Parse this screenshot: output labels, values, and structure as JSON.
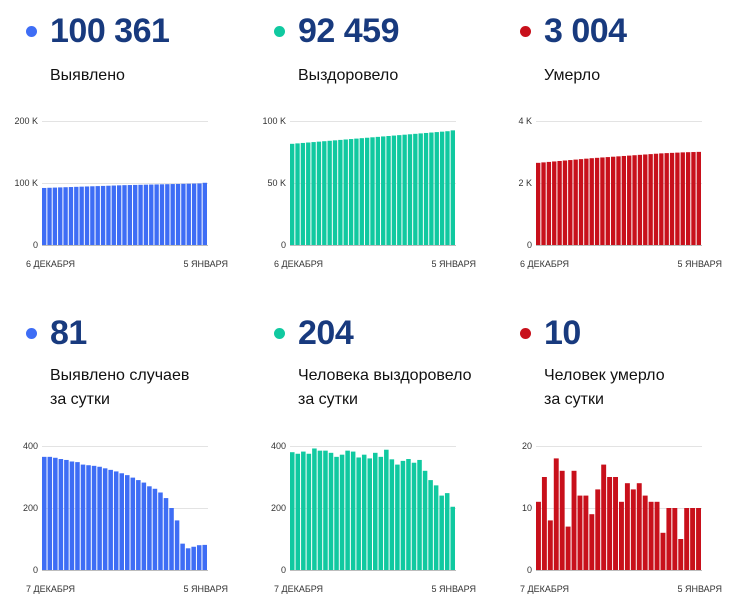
{
  "panels": [
    {
      "value": "100 361",
      "caption": [
        "Выявлено"
      ],
      "color": "#3e6df5"
    },
    {
      "value": "92 459",
      "caption": [
        "Выздоровело"
      ],
      "color": "#10c9a0"
    },
    {
      "value": "3 004",
      "caption": [
        "Умерло"
      ],
      "color": "#c8101b"
    },
    {
      "value": "81",
      "caption": [
        "Выявлено случаев",
        "за сутки"
      ],
      "color": "#3e6df5"
    },
    {
      "value": "204",
      "caption": [
        "Человека выздоровело",
        "за сутки"
      ],
      "color": "#10c9a0"
    },
    {
      "value": "10",
      "caption": [
        "Человек умерло",
        "за сутки"
      ],
      "color": "#c8101b"
    }
  ],
  "chart_data": [
    {
      "type": "bar",
      "color": "#3e6df5",
      "ylim": [
        0,
        200000
      ],
      "yticks": [
        0,
        100000,
        200000
      ],
      "ytick_labels": [
        "0",
        "100 K",
        "200 K"
      ],
      "x_labels": [
        "6 ДЕКАБРЯ",
        "5 ЯНВАРЯ"
      ],
      "values": [
        92000,
        92300,
        92600,
        92900,
        93200,
        93500,
        93800,
        94100,
        94400,
        94700,
        95000,
        95300,
        95600,
        95900,
        96200,
        96500,
        96700,
        96900,
        97100,
        97300,
        97500,
        97700,
        97900,
        98100,
        98300,
        98500,
        98700,
        98900,
        99100,
        99300,
        100361
      ]
    },
    {
      "type": "bar",
      "color": "#10c9a0",
      "ylim": [
        0,
        100000
      ],
      "yticks": [
        0,
        50000,
        100000
      ],
      "ytick_labels": [
        "0",
        "50 K",
        "100 K"
      ],
      "x_labels": [
        "6 ДЕКАБРЯ",
        "5 ЯНВАРЯ"
      ],
      "values": [
        81600,
        81950,
        82300,
        82650,
        83000,
        83350,
        83700,
        84050,
        84400,
        84750,
        85100,
        85450,
        85800,
        86150,
        86500,
        86850,
        87200,
        87550,
        87900,
        88250,
        88600,
        88950,
        89300,
        89650,
        90000,
        90350,
        90700,
        91050,
        91400,
        91750,
        92459
      ]
    },
    {
      "type": "bar",
      "color": "#c8101b",
      "ylim": [
        0,
        4000
      ],
      "yticks": [
        0,
        2000,
        4000
      ],
      "ytick_labels": [
        "0",
        "2 K",
        "4 K"
      ],
      "x_labels": [
        "6 ДЕКАБРЯ",
        "5 ЯНВАРЯ"
      ],
      "values": [
        2650,
        2665,
        2680,
        2695,
        2710,
        2725,
        2740,
        2755,
        2770,
        2785,
        2800,
        2812,
        2824,
        2836,
        2848,
        2860,
        2872,
        2884,
        2896,
        2908,
        2920,
        2932,
        2944,
        2956,
        2964,
        2972,
        2980,
        2988,
        2994,
        2999,
        3004
      ]
    },
    {
      "type": "bar",
      "color": "#3e6df5",
      "ylim": [
        0,
        400
      ],
      "yticks": [
        0,
        200,
        400
      ],
      "ytick_labels": [
        "0",
        "200",
        "400"
      ],
      "x_labels": [
        "7 ДЕКАБРЯ",
        "5 ЯНВАРЯ"
      ],
      "values": [
        365,
        365,
        362,
        358,
        355,
        350,
        348,
        340,
        338,
        336,
        333,
        328,
        323,
        318,
        312,
        306,
        298,
        290,
        282,
        270,
        262,
        250,
        232,
        200,
        160,
        85,
        70,
        75,
        80,
        81
      ]
    },
    {
      "type": "bar",
      "color": "#10c9a0",
      "ylim": [
        0,
        400
      ],
      "yticks": [
        0,
        200,
        400
      ],
      "ytick_labels": [
        "0",
        "200",
        "400"
      ],
      "x_labels": [
        "7 ДЕКАБРЯ",
        "5 ЯНВАРЯ"
      ],
      "values": [
        380,
        375,
        382,
        375,
        392,
        385,
        385,
        378,
        365,
        372,
        385,
        382,
        363,
        372,
        360,
        378,
        365,
        388,
        357,
        340,
        352,
        358,
        346,
        355,
        320,
        290,
        273,
        240,
        248,
        204
      ]
    },
    {
      "type": "bar",
      "color": "#c8101b",
      "ylim": [
        0,
        20
      ],
      "yticks": [
        0,
        10,
        20
      ],
      "ytick_labels": [
        "0",
        "10",
        "20"
      ],
      "x_labels": [
        "7 ДЕКАБРЯ",
        "5 ЯНВАРЯ"
      ],
      "values": [
        11,
        15,
        8,
        18,
        16,
        7,
        16,
        12,
        12,
        9,
        13,
        17,
        15,
        15,
        11,
        14,
        13,
        14,
        12,
        11,
        11,
        6,
        10,
        10,
        5,
        10,
        10,
        10
      ]
    }
  ]
}
